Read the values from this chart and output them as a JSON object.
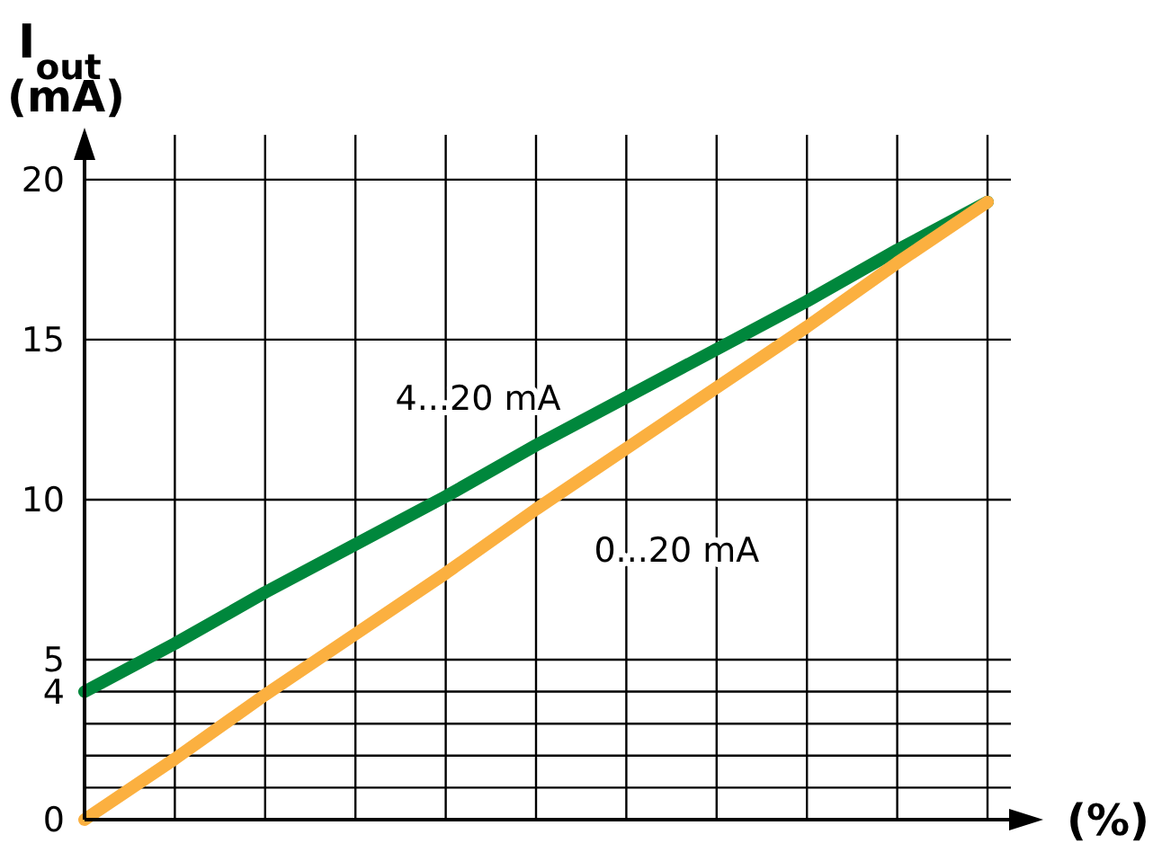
{
  "chart_data": {
    "type": "line",
    "xlabel": "(%)",
    "ylabel": "I$_{out}$ (mA)",
    "categories": [
      null,
      null,
      null,
      null,
      null,
      null,
      null,
      null,
      null,
      null,
      null
    ],
    "series": [
      {
        "name": "4...20 mA",
        "color": "#00873c",
        "values": [
          4,
          5.5,
          7.1,
          8.6,
          10.1,
          11.7,
          13.2,
          14.7,
          16.2,
          17.8,
          19.3
        ]
      },
      {
        "name": "0...20 mA",
        "color": "#fbb040",
        "values": [
          0,
          1.9,
          3.9,
          5.8,
          7.7,
          9.7,
          11.6,
          13.5,
          15.4,
          17.4,
          19.3
        ]
      }
    ],
    "ylim": [
      0,
      21.4
    ],
    "yticks": [
      0,
      {
        "value": 1,
        "label": null
      },
      {
        "value": 2,
        "label": null
      },
      {
        "value": 3,
        "label": null
      },
      4,
      5,
      10,
      15,
      20
    ],
    "grid": true,
    "legend": false,
    "marker": "none",
    "line_style": "solid"
  }
}
